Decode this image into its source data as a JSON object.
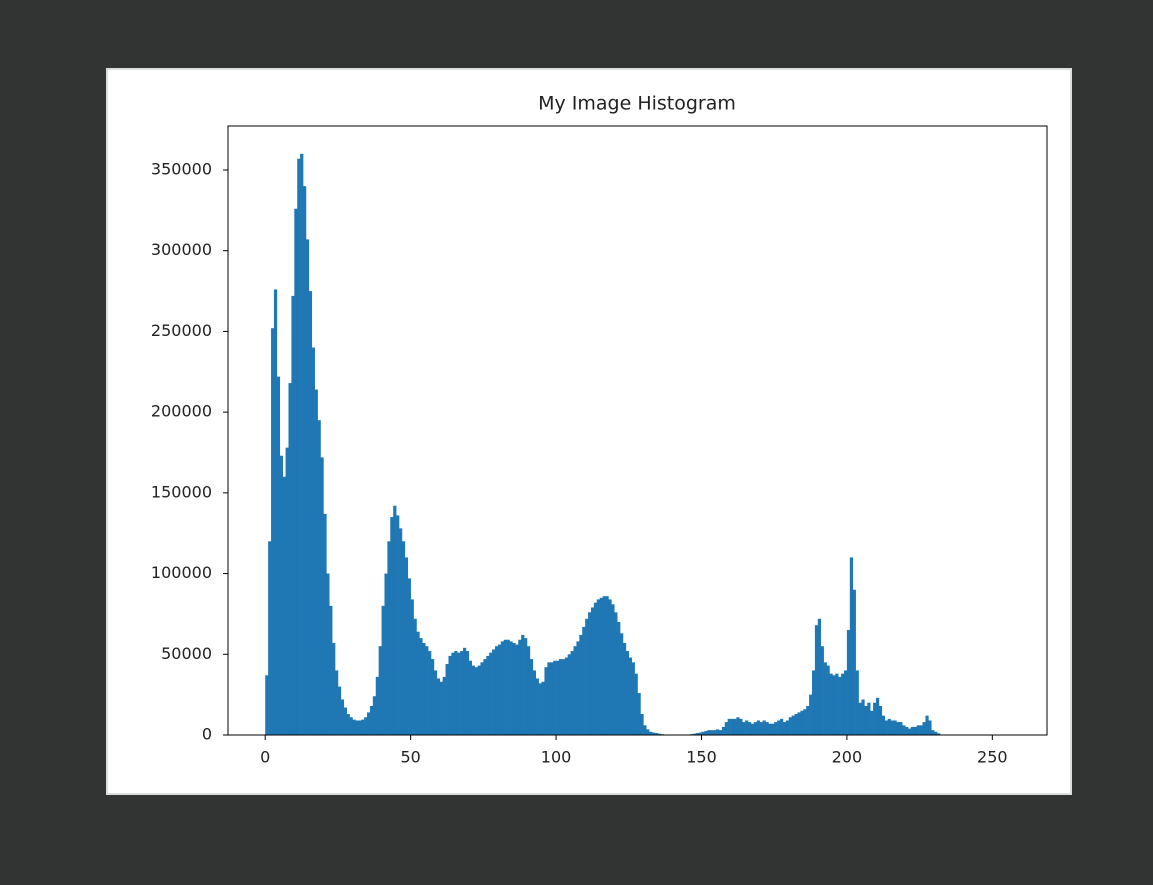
{
  "chart_data": {
    "type": "histogram",
    "title": "My Image Histogram",
    "color": "#1f77b4",
    "bins": [
      0,
      1,
      2,
      3,
      4,
      5,
      6,
      7,
      8,
      9,
      10,
      11,
      12,
      13,
      14,
      15,
      16,
      17,
      18,
      19,
      20,
      21,
      22,
      23,
      24,
      25,
      26,
      27,
      28,
      29,
      30,
      31,
      32,
      33,
      34,
      35,
      36,
      37,
      38,
      39,
      40,
      41,
      42,
      43,
      44,
      45,
      46,
      47,
      48,
      49,
      50,
      51,
      52,
      53,
      54,
      55,
      56,
      57,
      58,
      59,
      60,
      61,
      62,
      63,
      64,
      65,
      66,
      67,
      68,
      69,
      70,
      71,
      72,
      73,
      74,
      75,
      76,
      77,
      78,
      79,
      80,
      81,
      82,
      83,
      84,
      85,
      86,
      87,
      88,
      89,
      90,
      91,
      92,
      93,
      94,
      95,
      96,
      97,
      98,
      99,
      100,
      101,
      102,
      103,
      104,
      105,
      106,
      107,
      108,
      109,
      110,
      111,
      112,
      113,
      114,
      115,
      116,
      117,
      118,
      119,
      120,
      121,
      122,
      123,
      124,
      125,
      126,
      127,
      128,
      129,
      130,
      131,
      132,
      133,
      134,
      135,
      136,
      137,
      138,
      139,
      140,
      141,
      142,
      143,
      144,
      145,
      146,
      147,
      148,
      149,
      150,
      151,
      152,
      153,
      154,
      155,
      156,
      157,
      158,
      159,
      160,
      161,
      162,
      163,
      164,
      165,
      166,
      167,
      168,
      169,
      170,
      171,
      172,
      173,
      174,
      175,
      176,
      177,
      178,
      179,
      180,
      181,
      182,
      183,
      184,
      185,
      186,
      187,
      188,
      189,
      190,
      191,
      192,
      193,
      194,
      195,
      196,
      197,
      198,
      199,
      200,
      201,
      202,
      203,
      204,
      205,
      206,
      207,
      208,
      209,
      210,
      211,
      212,
      213,
      214,
      215,
      216,
      217,
      218,
      219,
      220,
      221,
      222,
      223,
      224,
      225,
      226,
      227,
      228,
      229,
      230,
      231,
      232,
      233,
      234,
      235,
      236,
      237,
      238,
      239,
      240,
      241,
      242,
      243,
      244,
      245,
      246,
      247,
      248,
      249,
      250,
      251,
      252,
      253,
      254,
      255,
      256
    ],
    "values": [
      37000,
      120000,
      252000,
      276000,
      222000,
      173000,
      160000,
      178000,
      218000,
      272000,
      326000,
      357000,
      360000,
      340000,
      307000,
      275000,
      240000,
      214000,
      195000,
      172000,
      137000,
      100000,
      80000,
      57000,
      40000,
      30000,
      22000,
      17000,
      13000,
      11000,
      9500,
      9000,
      9000,
      9500,
      11000,
      14000,
      18000,
      24000,
      36000,
      55000,
      80000,
      100000,
      120000,
      135000,
      142000,
      136000,
      128000,
      120000,
      110000,
      97000,
      84000,
      72000,
      64000,
      60000,
      57000,
      55000,
      52000,
      47000,
      40000,
      35000,
      33000,
      36000,
      44000,
      49000,
      51000,
      52000,
      51000,
      52000,
      54000,
      52000,
      46000,
      43000,
      42000,
      43000,
      45000,
      47000,
      49000,
      51000,
      53000,
      55000,
      56000,
      58000,
      59000,
      59000,
      58000,
      57000,
      56000,
      59000,
      62000,
      60000,
      55000,
      47000,
      40000,
      35000,
      32000,
      33000,
      42000,
      45000,
      45000,
      46000,
      46000,
      47000,
      47000,
      48000,
      50000,
      52000,
      55000,
      58000,
      62000,
      67000,
      72000,
      76000,
      79000,
      82000,
      84000,
      85000,
      86000,
      86000,
      84000,
      81000,
      76000,
      70000,
      63000,
      57000,
      52000,
      48000,
      45000,
      38000,
      26000,
      13000,
      6000,
      3500,
      2000,
      1500,
      1200,
      800,
      500,
      300,
      200,
      100,
      0,
      0,
      0,
      0,
      0,
      0,
      500,
      800,
      1200,
      1500,
      2000,
      2500,
      3000,
      3000,
      3000,
      3500,
      3000,
      5000,
      8000,
      10000,
      10000,
      10000,
      11000,
      10000,
      8000,
      9000,
      8000,
      7000,
      8000,
      9000,
      8000,
      9000,
      8000,
      7000,
      7000,
      8000,
      9000,
      10000,
      8000,
      9000,
      11000,
      12000,
      13000,
      14000,
      15000,
      16000,
      18000,
      25000,
      40000,
      68000,
      72000,
      55000,
      45000,
      43000,
      38000,
      37000,
      38000,
      36000,
      38000,
      40000,
      65000,
      110000,
      90000,
      40000,
      20000,
      22000,
      18000,
      20000,
      15000,
      20000,
      23000,
      18000,
      12000,
      9000,
      10000,
      9000,
      9000,
      8000,
      8000,
      6000,
      5000,
      4000,
      5000,
      5000,
      6000,
      6000,
      8000,
      12000,
      9000,
      3000,
      2000,
      1000,
      0,
      0,
      0,
      0,
      0,
      0,
      0,
      0,
      0,
      0,
      0,
      0,
      0,
      0,
      0,
      0,
      0,
      0,
      0,
      0,
      0,
      0,
      0,
      0
    ],
    "xlim": [
      -12.8,
      268.8
    ],
    "xticks": [
      0,
      50,
      100,
      150,
      200,
      250
    ],
    "ylim": [
      0,
      377250
    ],
    "yticks": [
      0,
      50000,
      100000,
      150000,
      200000,
      250000,
      300000,
      350000
    ]
  }
}
